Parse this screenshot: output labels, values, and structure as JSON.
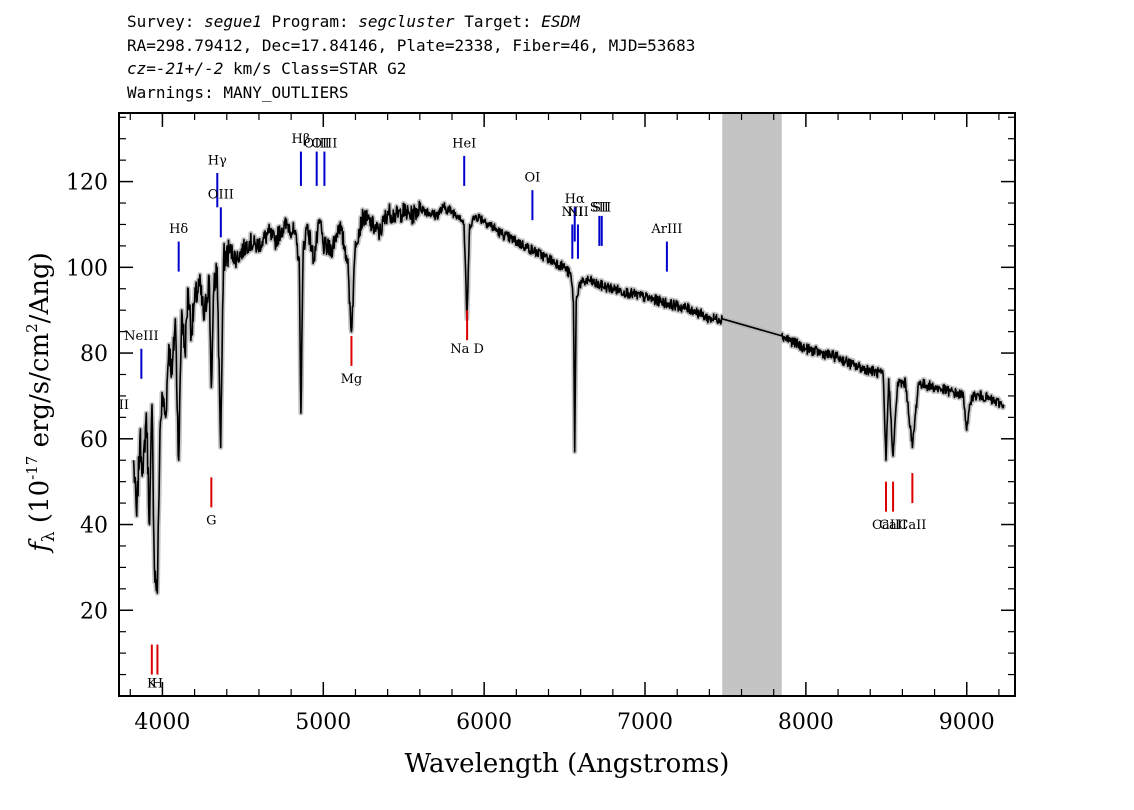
{
  "header": {
    "survey_label": "Survey:",
    "survey": "segue1",
    "program_label": "Program:",
    "program": "segcluster",
    "target_label": "Target:",
    "target": "ESDM",
    "line2": "RA=298.79412, Dec=17.84146, Plate=2338, Fiber=46, MJD=53683",
    "cz_label": "cz=",
    "cz_value": "-21+/-2",
    "cz_rest": " km/s Class=STAR G2",
    "warnings": "Warnings: MANY_OUTLIERS"
  },
  "chart_data": {
    "type": "line",
    "xlabel": "Wavelength (Angstroms)",
    "ylabel": "f_λ (10^-17 erg/s/cm^2/Ang)",
    "xlim": [
      3730,
      9300
    ],
    "ylim": [
      0,
      136
    ],
    "x_ticks": [
      4000,
      5000,
      6000,
      7000,
      8000,
      9000
    ],
    "y_ticks": [
      20,
      40,
      60,
      80,
      100,
      120
    ],
    "grid": false,
    "masked_region": [
      7480,
      7850
    ],
    "colors": {
      "spectrum": "#000000",
      "error": "#b4b4b4",
      "mask": "#c4c4c4",
      "emission": "#0000cc",
      "absorption": "#dd0000"
    },
    "spectrum": {
      "x": [
        3820,
        3840,
        3860,
        3880,
        3900,
        3920,
        3935,
        3950,
        3968,
        3985,
        4000,
        4020,
        4040,
        4060,
        4080,
        4101,
        4120,
        4140,
        4160,
        4180,
        4200,
        4230,
        4260,
        4290,
        4304,
        4320,
        4340,
        4362,
        4380,
        4420,
        4460,
        4500,
        4540,
        4580,
        4620,
        4660,
        4700,
        4740,
        4780,
        4820,
        4850,
        4861,
        4875,
        4900,
        4940,
        4980,
        5000,
        5050,
        5100,
        5150,
        5175,
        5200,
        5250,
        5300,
        5350,
        5400,
        5450,
        5500,
        5550,
        5600,
        5650,
        5700,
        5750,
        5800,
        5850,
        5875,
        5893,
        5910,
        5950,
        6000,
        6100,
        6200,
        6300,
        6400,
        6500,
        6540,
        6555,
        6563,
        6572,
        6590,
        6650,
        6700,
        6800,
        6900,
        7000,
        7100,
        7200,
        7300,
        7400,
        7480,
        7850,
        7900,
        8000,
        8100,
        8200,
        8300,
        8400,
        8480,
        8498,
        8515,
        8542,
        8570,
        8620,
        8662,
        8700,
        8800,
        8900,
        8980,
        9000,
        9030,
        9100,
        9150,
        9230
      ],
      "y": [
        55,
        42,
        60,
        52,
        66,
        40,
        68,
        30,
        24,
        62,
        70,
        65,
        82,
        75,
        88,
        55,
        90,
        80,
        95,
        85,
        92,
        96,
        88,
        98,
        72,
        95,
        100,
        58,
        102,
        104,
        102,
        104,
        106,
        105,
        106,
        108,
        106,
        109,
        110,
        108,
        102,
        66,
        104,
        110,
        102,
        111,
        105,
        104,
        110,
        102,
        85,
        106,
        112,
        110,
        108,
        113,
        112,
        113,
        112,
        114,
        113,
        112,
        114,
        113,
        112,
        110,
        88,
        110,
        112,
        111,
        108,
        106,
        104,
        102,
        100,
        98,
        92,
        57,
        92,
        96,
        97,
        96,
        95,
        94,
        93,
        92,
        91,
        90,
        88,
        88,
        84,
        83,
        81,
        80,
        79,
        77,
        76,
        75,
        55,
        74,
        56,
        73,
        73,
        58,
        73,
        72,
        71,
        70,
        62,
        70,
        70,
        69,
        68
      ]
    },
    "emission_lines": [
      {
        "name": "OII",
        "x": 3727,
        "y": [
          58,
          64
        ],
        "label_y": 67
      },
      {
        "name": "NeIII",
        "x": 3869,
        "y": [
          74,
          81
        ],
        "label_y": 83
      },
      {
        "name": "Hδ",
        "x": 4101,
        "y": [
          99,
          106
        ],
        "label_y": 108
      },
      {
        "name": "Hγ",
        "x": 4341,
        "y": [
          114,
          122
        ],
        "label_y": 124
      },
      {
        "name": "OIII",
        "x": 4363,
        "y": [
          107,
          114
        ],
        "label_y": 116
      },
      {
        "name": "Hβ",
        "x": 4861,
        "y": [
          119,
          127
        ],
        "label_y": 129
      },
      {
        "name": "OIII",
        "x": 4959,
        "y": [
          119,
          127
        ],
        "label_y": 128
      },
      {
        "name": "OIII",
        "x": 5007,
        "y": [
          119,
          127
        ],
        "label_y": 128
      },
      {
        "name": "HeI",
        "x": 5876,
        "y": [
          119,
          126
        ],
        "label_y": 128
      },
      {
        "name": "OI",
        "x": 6300,
        "y": [
          111,
          118
        ],
        "label_y": 120
      },
      {
        "name": "NII",
        "x": 6548,
        "y": [
          102,
          110
        ],
        "label_y": 112
      },
      {
        "name": "Hα",
        "x": 6563,
        "y": [
          106,
          114
        ],
        "label_y": 115
      },
      {
        "name": "NII",
        "x": 6583,
        "y": [
          102,
          110
        ],
        "label_y": 112
      },
      {
        "name": "SII",
        "x": 6716,
        "y": [
          105,
          112
        ],
        "label_y": 113
      },
      {
        "name": "SII",
        "x": 6731,
        "y": [
          105,
          112
        ],
        "label_y": 113
      },
      {
        "name": "ArIII",
        "x": 7136,
        "y": [
          99,
          106
        ],
        "label_y": 108
      }
    ],
    "absorption_lines": [
      {
        "name": "K",
        "x": 3934,
        "y": [
          5,
          12
        ],
        "label_y": 2
      },
      {
        "name": "H",
        "x": 3969,
        "y": [
          5,
          12
        ],
        "label_y": 2
      },
      {
        "name": "G",
        "x": 4304,
        "y": [
          44,
          51
        ],
        "label_y": 40
      },
      {
        "name": "Mg",
        "x": 5175,
        "y": [
          77,
          84
        ],
        "label_y": 73
      },
      {
        "name": "Na D",
        "x": 5894,
        "y": [
          83,
          90
        ],
        "label_y": 80
      },
      {
        "name": "CaII",
        "x": 8498,
        "y": [
          43,
          50
        ],
        "label_y": 39
      },
      {
        "name": "CaII",
        "x": 8542,
        "y": [
          43,
          50
        ],
        "label_y": 39
      },
      {
        "name": "CaII",
        "x": 8662,
        "y": [
          45,
          52
        ],
        "label_y": 39
      }
    ]
  }
}
